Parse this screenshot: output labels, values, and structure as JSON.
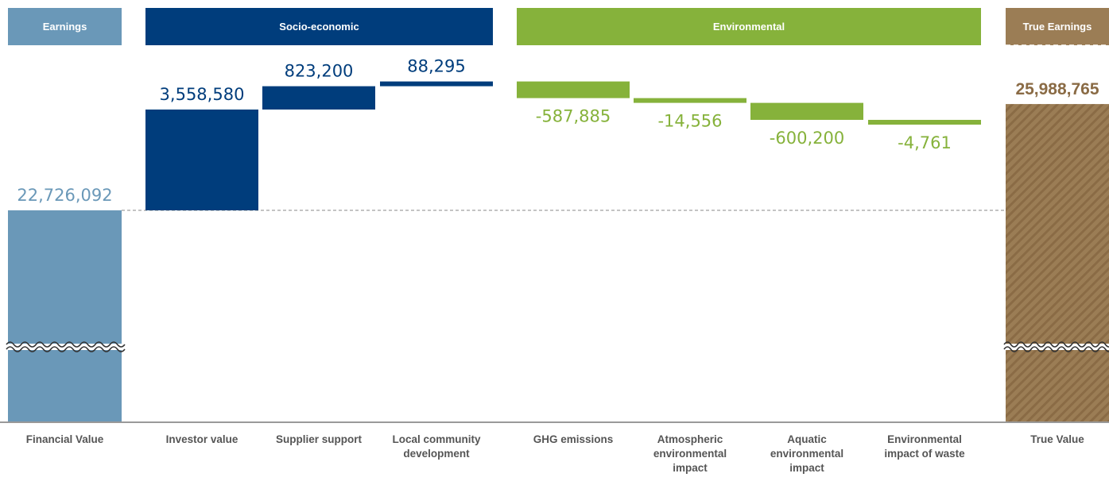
{
  "chart_data": {
    "type": "waterfall",
    "groups": [
      {
        "label": "Earnings",
        "color": "#6a98b8"
      },
      {
        "label": "Socio-economic",
        "color": "#003d7c"
      },
      {
        "label": "Environmental",
        "color": "#86b23b"
      },
      {
        "label": "True Earnings",
        "color": "#9b7d55"
      }
    ],
    "categories": [
      "Financial Value",
      "Investor value",
      "Supplier support",
      "Local community development",
      "GHG emissions",
      "Atmospheric environmental impact",
      "Aquatic environmental impact",
      "Environmental impact of waste",
      "True Value"
    ],
    "values": [
      22726092,
      3558580,
      823200,
      88295,
      -587885,
      -14556,
      -600200,
      -4761,
      25988765
    ],
    "value_labels": [
      "22,726,092",
      "3,558,580",
      "823,200",
      "88,295",
      "-587,885",
      "-14,556",
      "-600,200",
      "-4,761",
      "25,988,765"
    ],
    "bar_kinds": [
      "total",
      "delta",
      "delta",
      "delta",
      "delta",
      "delta",
      "delta",
      "delta",
      "total"
    ],
    "bar_groups": [
      0,
      1,
      1,
      1,
      2,
      2,
      2,
      2,
      3
    ],
    "axis_break": true
  }
}
